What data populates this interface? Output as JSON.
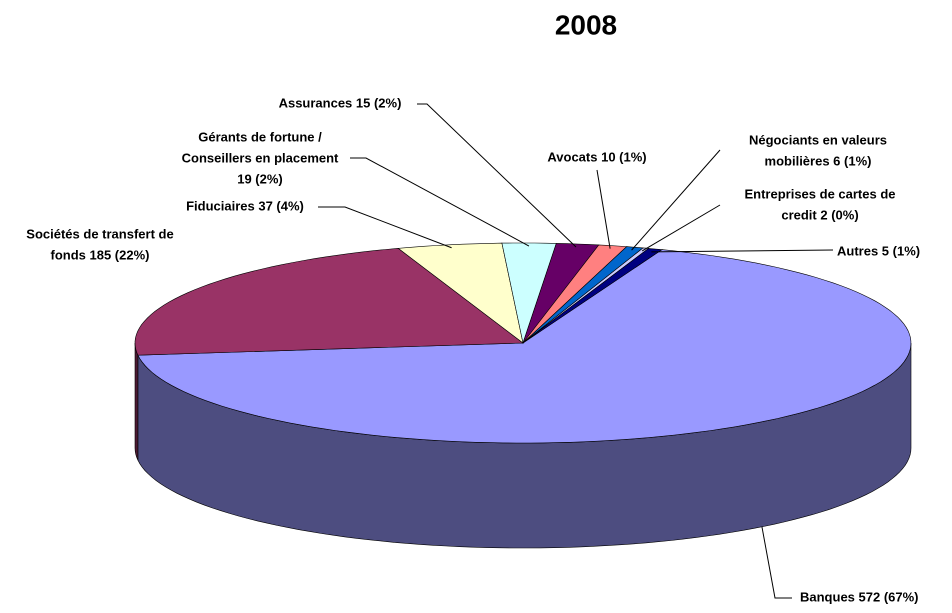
{
  "chart_data": {
    "type": "pie",
    "title": "2008",
    "labels": [
      [
        "Banques 572 (67%)"
      ],
      [
        "Sociétés de transfert de",
        "fonds 185 (22%)"
      ],
      [
        "Fiduciaires 37 (4%)"
      ],
      [
        "Gérants de fortune /",
        "Conseillers en placement",
        "19 (2%)"
      ],
      [
        "Assurances 15 (2%)"
      ],
      [
        "Avocats 10 (1%)"
      ],
      [
        "Négociants en valeurs",
        "mobilières 6 (1%)"
      ],
      [
        "Entreprises de cartes de",
        "credit 2 (0%)"
      ],
      [
        "Autres 5 (1%)"
      ]
    ],
    "values": [
      572,
      185,
      37,
      19,
      15,
      10,
      6,
      2,
      5
    ],
    "colors": [
      "#9999ff",
      "#993366",
      "#ffffcc",
      "#ccffff",
      "#660066",
      "#ff8080",
      "#0066cc",
      "#ccccff",
      "#000080"
    ]
  }
}
